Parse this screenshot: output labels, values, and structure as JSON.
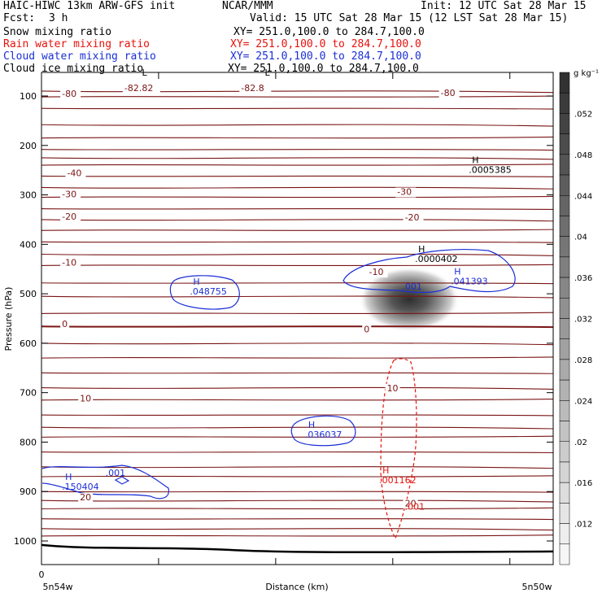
{
  "header": {
    "title_left": "HAIC-HIWC 13km ARW-GFS init",
    "org": "NCAR/MMM",
    "init": "Init: 12 UTC Sat 28 Mar 15",
    "fcst_label": "Fcst:",
    "fcst_value": "3 h",
    "valid": "Valid: 15 UTC Sat 28 Mar 15 (12 LST Sat 28 Mar 15)"
  },
  "fields": [
    {
      "name": "Snow mixing ratio",
      "xy": "XY= 251.0,100.0 to 284.7,100.0",
      "color": "#000000"
    },
    {
      "name": "Rain water mixing ratio",
      "xy": "XY= 251.0,100.0 to 284.7,100.0",
      "color": "#e8120c"
    },
    {
      "name": "Cloud water mixing ratio",
      "xy": "XY= 251.0,100.0 to 284.7,100.0",
      "color": "#1b2fd6"
    },
    {
      "name": "Cloud ice mixing ratio",
      "xy": "XY= 251.0,100.0 to 284.7,100.0",
      "color": "#000000"
    }
  ],
  "chart_data": {
    "type": "cross-section contour",
    "xlabel": "Distance (km)",
    "ylabel": "Pressure (hPa)",
    "x_tick_labels": [
      "0"
    ],
    "x_end_labels": {
      "left": "5n54w",
      "right": "5n50w"
    },
    "y_ticks": [
      100,
      200,
      300,
      400,
      500,
      600,
      700,
      800,
      900,
      1000
    ],
    "ylim": [
      1050,
      75
    ],
    "colorbar": {
      "unit": "g kg⁻¹",
      "labels": [
        ".052",
        ".048",
        ".044",
        ".04",
        ".036",
        ".032",
        ".028",
        ".024",
        ".02",
        ".016",
        ".012"
      ],
      "levels": [
        0.056,
        0.054,
        0.052,
        0.05,
        0.048,
        0.046,
        0.044,
        0.042,
        0.04,
        0.038,
        0.036,
        0.034,
        0.032,
        0.03,
        0.028,
        0.026,
        0.024,
        0.022,
        0.02,
        0.018,
        0.016,
        0.014,
        0.012,
        0.01,
        0.008
      ]
    },
    "temperature_labels": [
      {
        "text": "-82.82",
        "x": 0.162,
        "p": 90
      },
      {
        "text": "-82.8",
        "x": 0.39,
        "p": 90
      },
      {
        "text": "-80",
        "x": 0.04,
        "p": 102
      },
      {
        "text": "-80",
        "x": 0.78,
        "p": 100
      },
      {
        "text": "-40",
        "x": 0.05,
        "p": 262
      },
      {
        "text": "-30",
        "x": 0.04,
        "p": 305
      },
      {
        "text": "-30",
        "x": 0.695,
        "p": 300
      },
      {
        "text": "-20",
        "x": 0.04,
        "p": 350
      },
      {
        "text": "-20",
        "x": 0.71,
        "p": 352
      },
      {
        "text": "-10",
        "x": 0.04,
        "p": 443
      },
      {
        "text": "-10",
        "x": 0.64,
        "p": 462
      },
      {
        "text": "0",
        "x": 0.04,
        "p": 567
      },
      {
        "text": "0",
        "x": 0.63,
        "p": 578
      },
      {
        "text": "10",
        "x": 0.075,
        "p": 718
      },
      {
        "text": "10",
        "x": 0.675,
        "p": 697
      },
      {
        "text": "20",
        "x": 0.075,
        "p": 918
      },
      {
        "text": "20",
        "x": 0.71,
        "p": 930
      }
    ],
    "extrema": [
      {
        "symbol": "L",
        "value": "",
        "x": 0.19,
        "p": 75,
        "color": "#000000"
      },
      {
        "symbol": "L",
        "value": "",
        "x": 0.43,
        "p": 75,
        "color": "#000000"
      },
      {
        "symbol": "H",
        "value": ".0005385",
        "x": 0.835,
        "p": 252,
        "color": "#000000"
      },
      {
        "symbol": "H",
        "value": ".0000402",
        "x": 0.73,
        "p": 432,
        "color": "#000000"
      },
      {
        "symbol": "H",
        "value": ".041393",
        "x": 0.8,
        "p": 478,
        "color": "#1b2fd6"
      },
      {
        "symbol": "",
        "value": ".001",
        "x": 0.705,
        "p": 488,
        "color": "#1b2fd6"
      },
      {
        "symbol": "H",
        "value": ".048755",
        "x": 0.29,
        "p": 498,
        "color": "#1b2fd6"
      },
      {
        "symbol": "H",
        "value": ".036037",
        "x": 0.515,
        "p": 788,
        "color": "#1b2fd6"
      },
      {
        "symbol": "",
        "value": ".001",
        "x": 0.125,
        "p": 865,
        "color": "#1b2fd6"
      },
      {
        "symbol": "H",
        "value": ".150404",
        "x": 0.04,
        "p": 893,
        "color": "#1b2fd6"
      },
      {
        "symbol": "H",
        "value": ".001162",
        "x": 0.66,
        "p": 880,
        "color": "#e8120c"
      },
      {
        "symbol": "",
        "value": ".001",
        "x": 0.71,
        "p": 933,
        "color": "#e8120c"
      }
    ]
  }
}
